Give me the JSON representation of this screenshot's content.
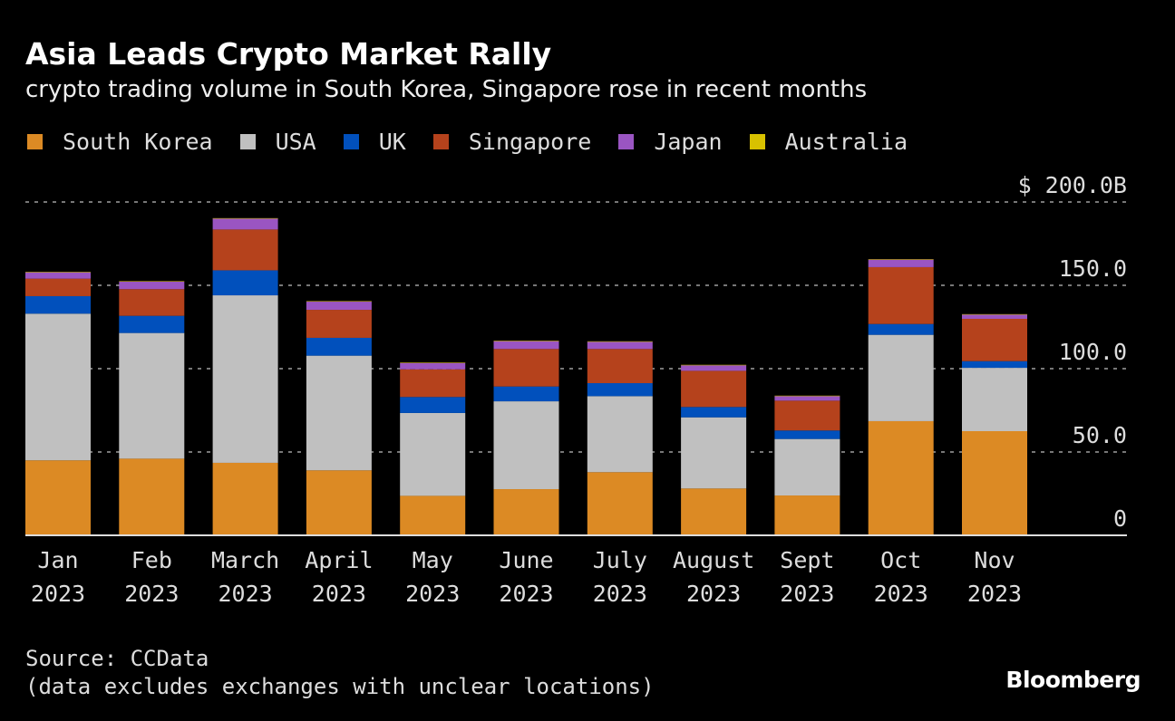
{
  "chart_data": {
    "type": "bar",
    "stacked": true,
    "title": "Asia Leads Crypto Market Rally",
    "subtitle": "crypto trading volume in South Korea, Singapore rose in recent months",
    "xlabel": "",
    "ylabel": "",
    "ylim": [
      0,
      200
    ],
    "yticks": [
      0,
      50,
      100,
      150,
      200
    ],
    "ytick_labels": [
      "0",
      "50.0",
      "100.0",
      "150.0",
      "$ 200.0B"
    ],
    "grid": true,
    "legend_position": "top-left",
    "categories": [
      {
        "month": "Jan",
        "year": "2023"
      },
      {
        "month": "Feb",
        "year": "2023"
      },
      {
        "month": "March",
        "year": "2023"
      },
      {
        "month": "April",
        "year": "2023"
      },
      {
        "month": "May",
        "year": "2023"
      },
      {
        "month": "June",
        "year": "2023"
      },
      {
        "month": "July",
        "year": "2023"
      },
      {
        "month": "August",
        "year": "2023"
      },
      {
        "month": "Sept",
        "year": "2023"
      },
      {
        "month": "Oct",
        "year": "2023"
      },
      {
        "month": "Nov",
        "year": "2023"
      }
    ],
    "series": [
      {
        "name": "South Korea",
        "color": "#dc8a24",
        "values": [
          45,
          46,
          43.5,
          39,
          23.7,
          27.7,
          37.9,
          28.1,
          23.9,
          68.5,
          62.5
        ]
      },
      {
        "name": "USA",
        "color": "#c0c0c0",
        "values": [
          88,
          75.4,
          100.5,
          68.8,
          49.7,
          52.7,
          45.6,
          42.7,
          33.9,
          51.8,
          38
        ]
      },
      {
        "name": "UK",
        "color": "#0150bc",
        "values": [
          10.5,
          10.3,
          15,
          10.7,
          9.6,
          8.9,
          7.8,
          6.2,
          5.1,
          6.5,
          4
        ]
      },
      {
        "name": "Singapore",
        "color": "#b5421c",
        "values": [
          10.5,
          16,
          24.5,
          16.8,
          16.6,
          22.5,
          20.5,
          21.7,
          17.9,
          34.1,
          25.4
        ]
      },
      {
        "name": "Japan",
        "color": "#9a55c2",
        "values": [
          3.8,
          4.5,
          6.5,
          4.9,
          3.8,
          4.7,
          4.3,
          3.3,
          2.7,
          4.5,
          2.5
        ]
      },
      {
        "name": "Australia",
        "color": "#d8c100",
        "values": [
          0.3,
          0.3,
          0.3,
          0.3,
          0.3,
          0.3,
          0.3,
          0.3,
          0.3,
          0.3,
          0.3
        ]
      }
    ]
  },
  "footer": {
    "source": "Source: CCData",
    "note": "(data excludes exchanges with unclear locations)",
    "brand": "Bloomberg"
  }
}
